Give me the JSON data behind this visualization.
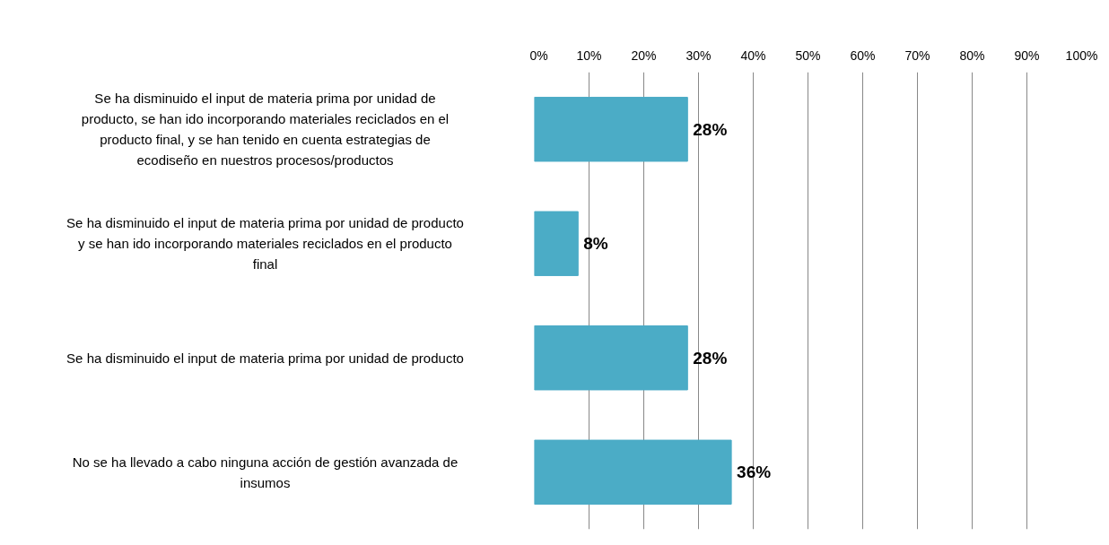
{
  "chart_data": {
    "type": "bar",
    "orientation": "horizontal",
    "categories": [
      "Se ha disminuido el input de materia prima por unidad de producto, se han ido incorporando materiales reciclados en el producto final, y se han tenido en cuenta estrategias de ecodiseño en nuestros procesos/productos",
      "Se ha disminuido el input de materia prima por unidad de producto y se han ido incorporando materiales reciclados en el producto final",
      "Se ha disminuido el input de materia prima por unidad de producto",
      "No se ha llevado a cabo ninguna acción de gestión avanzada de insumos"
    ],
    "values": [
      28,
      8,
      28,
      36
    ],
    "value_labels": [
      "28%",
      "8%",
      "28%",
      "36%"
    ],
    "color": "#4bacc6",
    "xlim": [
      0,
      100
    ],
    "xticks": [
      {
        "value": 0,
        "label": "0%"
      },
      {
        "value": 10,
        "label": "10%"
      },
      {
        "value": 20,
        "label": "20%"
      },
      {
        "value": 30,
        "label": "30%"
      },
      {
        "value": 40,
        "label": "40%"
      },
      {
        "value": 50,
        "label": "50%"
      },
      {
        "value": 60,
        "label": "60%"
      },
      {
        "value": 70,
        "label": "70%"
      },
      {
        "value": 80,
        "label": "80%"
      },
      {
        "value": 90,
        "label": "90%"
      },
      {
        "value": 100,
        "label": "100%"
      }
    ],
    "grid": "x"
  }
}
